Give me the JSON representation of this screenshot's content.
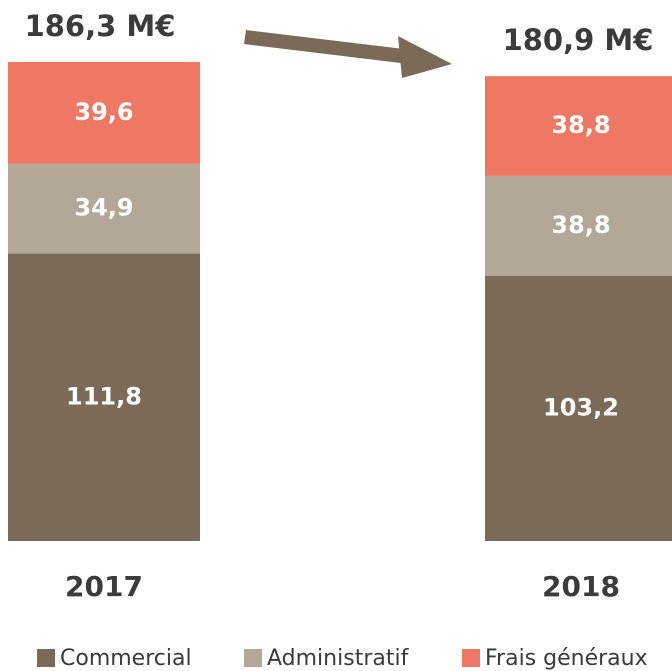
{
  "chart_data": {
    "type": "stacked_bar",
    "categories": [
      "2017",
      "2018"
    ],
    "series": [
      {
        "name": "Commercial",
        "color": "#7a6a57",
        "values": [
          111.8,
          103.2
        ],
        "value_labels": [
          "111,8",
          "103,2"
        ]
      },
      {
        "name": "Administratif",
        "color": "#b3a897",
        "values": [
          34.9,
          38.8
        ],
        "value_labels": [
          "34,9",
          "38,8"
        ]
      },
      {
        "name": "Frais généraux",
        "color": "#ee7863",
        "values": [
          39.6,
          38.8
        ],
        "value_labels": [
          "39,6",
          "38,8"
        ]
      }
    ],
    "annotations": [
      "186,3 M€",
      "180,9 M€"
    ],
    "legend": "bottom"
  }
}
